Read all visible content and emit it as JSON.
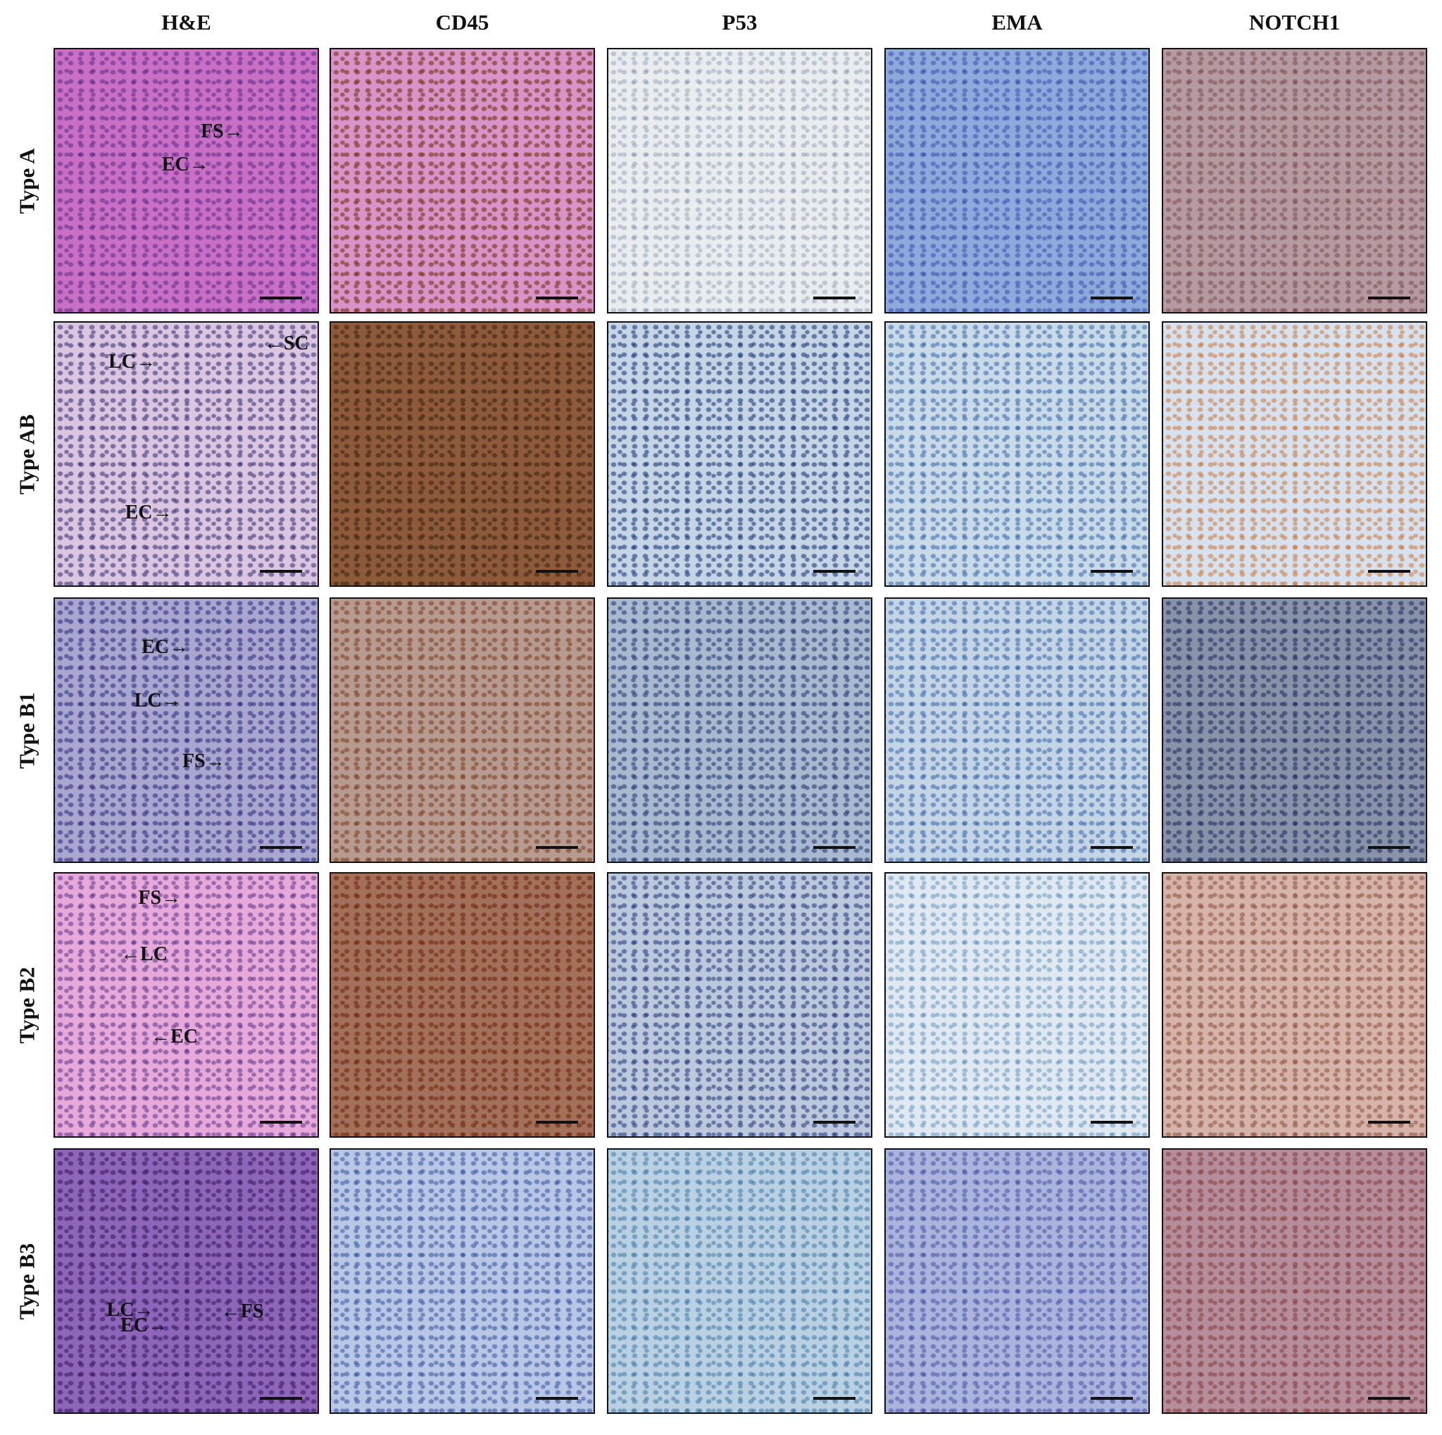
{
  "columns": [
    "H&E",
    "CD45",
    "P53",
    "EMA",
    "NOTCH1"
  ],
  "rows": [
    {
      "label": "Type A",
      "annotations": [
        "FS→",
        "EC→"
      ]
    },
    {
      "label": "Type AB",
      "annotations": [
        "LC→",
        "←SC",
        "EC→"
      ]
    },
    {
      "label": "Type B1",
      "annotations": [
        "EC→",
        "LC→",
        "FS→"
      ]
    },
    {
      "label": "Type B2",
      "annotations": [
        "FS→",
        "←LC",
        "←EC"
      ]
    },
    {
      "label": "Type B3",
      "annotations": [
        "LC→",
        "EC→",
        "←FS"
      ]
    }
  ]
}
